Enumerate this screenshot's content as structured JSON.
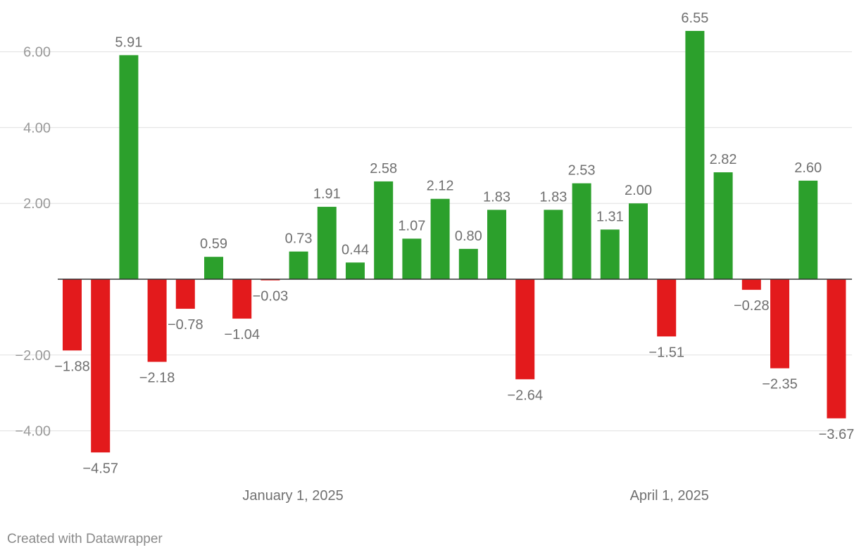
{
  "chart_data": {
    "type": "bar",
    "title": "",
    "xlabel": "",
    "ylabel": "",
    "ylim": [
      -4.6,
      6.6
    ],
    "y_ticks": [
      "6.00",
      "4.00",
      "2.00",
      "−2.00",
      "−4.00"
    ],
    "x_tick_labels": [
      "January 1, 2025",
      "April 1, 2025"
    ],
    "grid": true,
    "colors": {
      "positive": "#2ca02c",
      "negative": "#e31a1c",
      "zero_line": "#333333",
      "grid": "#e0e0e0"
    },
    "values": [
      -1.88,
      -4.57,
      5.91,
      -2.18,
      -0.78,
      0.59,
      -1.04,
      -0.03,
      0.73,
      1.91,
      0.44,
      2.58,
      1.07,
      2.12,
      0.8,
      1.83,
      -2.64,
      1.83,
      2.53,
      1.31,
      2.0,
      -1.51,
      6.55,
      2.82,
      -0.28,
      -2.35,
      2.6,
      -3.67
    ],
    "value_labels": [
      "−1.88",
      "−4.57",
      "5.91",
      "−2.18",
      "−0.78",
      "0.59",
      "−1.04",
      "−0.03",
      "0.73",
      "1.91",
      "0.44",
      "2.58",
      "1.07",
      "2.12",
      "0.80",
      "1.83",
      "−2.64",
      "1.83",
      "2.53",
      "1.31",
      "2.00",
      "−1.51",
      "6.55",
      "2.82",
      "−0.28",
      "−2.35",
      "2.60",
      "−3.67"
    ]
  },
  "footer": {
    "credit": "Created with Datawrapper"
  }
}
